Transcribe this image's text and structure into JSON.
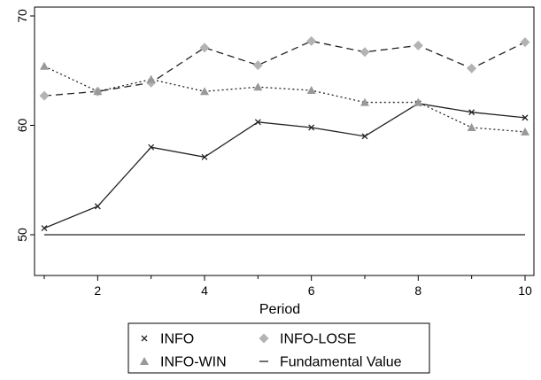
{
  "chart_data": {
    "type": "line",
    "title": "",
    "xlabel": "Period",
    "ylabel": "",
    "xlim": [
      1,
      10
    ],
    "ylim": [
      50,
      70
    ],
    "x_ticks": [
      2,
      4,
      6,
      8,
      10
    ],
    "y_ticks": [
      50,
      60,
      70
    ],
    "x": [
      1,
      2,
      3,
      4,
      5,
      6,
      7,
      8,
      9,
      10
    ],
    "grid": false,
    "legend_position": "bottom",
    "series": [
      {
        "name": "INFO",
        "values": [
          50.6,
          52.6,
          58.0,
          57.1,
          60.3,
          59.8,
          59.0,
          62.0,
          61.2,
          60.7
        ],
        "line_style": "solid",
        "marker": "x",
        "color": "#222222"
      },
      {
        "name": "INFO-LOSE",
        "values": [
          62.7,
          63.1,
          63.9,
          67.1,
          65.5,
          67.7,
          66.7,
          67.3,
          65.2,
          67.6
        ],
        "line_style": "dashed",
        "marker": "diamond",
        "color": "#222222",
        "marker_color": "#b3b3b3"
      },
      {
        "name": "INFO-WIN",
        "values": [
          65.4,
          63.1,
          64.2,
          63.1,
          63.5,
          63.2,
          62.1,
          62.1,
          59.8,
          59.4
        ],
        "line_style": "dotted",
        "marker": "triangle",
        "color": "#222222",
        "marker_color": "#999999"
      },
      {
        "name": "Fundamental Value",
        "values": [
          50,
          50,
          50,
          50,
          50,
          50,
          50,
          50,
          50,
          50
        ],
        "line_style": "solid",
        "marker": "none",
        "color": "#222222"
      }
    ]
  }
}
